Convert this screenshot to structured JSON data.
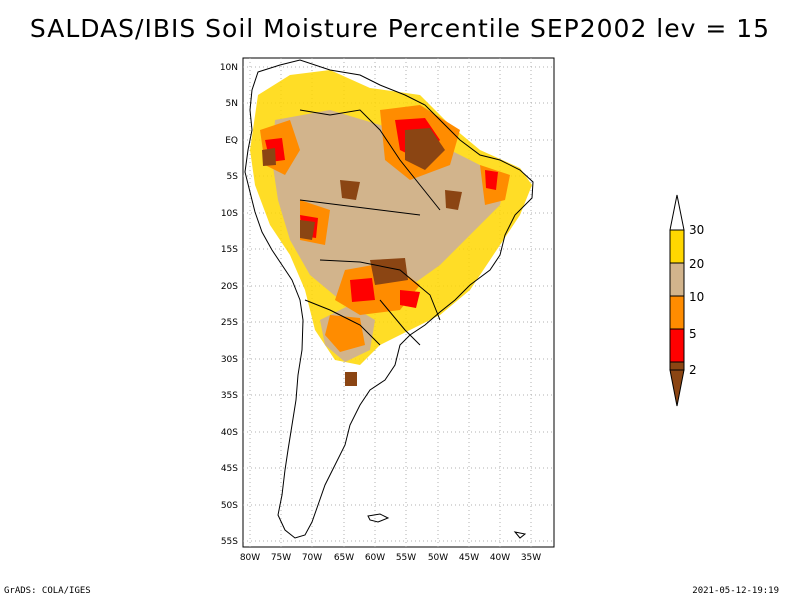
{
  "title": "SALDAS/IBIS Soil Moisture Percentile SEP2002 lev = 15",
  "footer": {
    "left": "GrADS: COLA/IGES",
    "right": "2021-05-12-19:19"
  },
  "map": {
    "region": "South America",
    "lat_labels": [
      "10N",
      "5N",
      "EQ",
      "5S",
      "10S",
      "15S",
      "20S",
      "25S",
      "30S",
      "35S",
      "40S",
      "45S",
      "50S",
      "55S"
    ],
    "lon_labels": [
      "80W",
      "75W",
      "70W",
      "65W",
      "60W",
      "55W",
      "50W",
      "45W",
      "40W",
      "35W"
    ],
    "grid": true
  },
  "colorbar": {
    "labels": [
      "2",
      "5",
      "10",
      "20",
      "30"
    ],
    "colors": {
      "below_2": "#8B4513",
      "2_5": "#FF0000",
      "5_10": "#FF8C00",
      "10_20": "#D2B48C",
      "20_30": "#FFD700",
      "above_30": "#FFFFFF"
    }
  }
}
